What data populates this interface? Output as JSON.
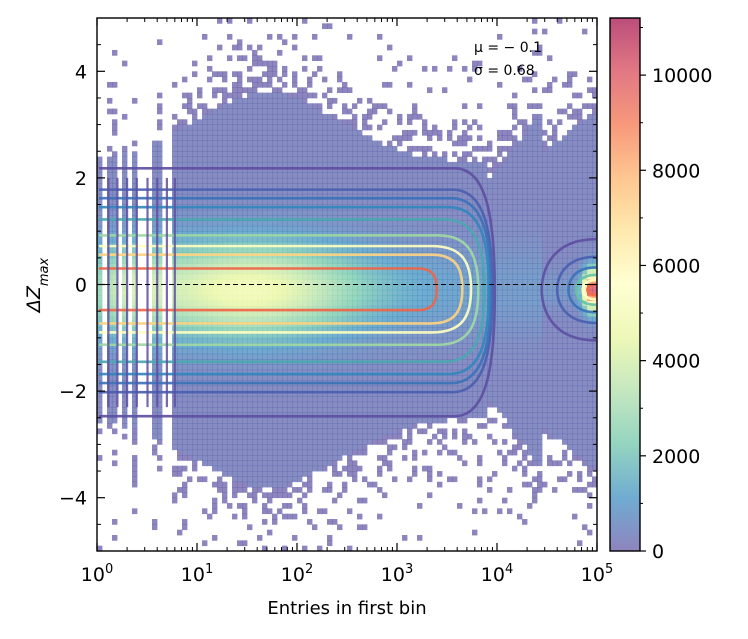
{
  "chart_data": {
    "type": "heatmap",
    "title": "",
    "xlabel": "Entries in first bin",
    "ylabel_main": "ΔZ",
    "ylabel_sub": "max",
    "xscale": "log",
    "xlim": [
      1,
      100000
    ],
    "ylim": [
      -5,
      5
    ],
    "x_ticks": [
      {
        "value": 1,
        "base": "10",
        "exp": "0"
      },
      {
        "value": 10,
        "base": "10",
        "exp": "1"
      },
      {
        "value": 100,
        "base": "10",
        "exp": "2"
      },
      {
        "value": 1000,
        "base": "10",
        "exp": "3"
      },
      {
        "value": 10000,
        "base": "10",
        "exp": "4"
      },
      {
        "value": 100000,
        "base": "10",
        "exp": "5"
      }
    ],
    "y_ticks": [
      {
        "value": 4,
        "label": "4"
      },
      {
        "value": 2,
        "label": "2"
      },
      {
        "value": 0,
        "label": "0"
      },
      {
        "value": -2,
        "label": "−2"
      },
      {
        "value": -4,
        "label": "−4"
      }
    ],
    "reference_line_y": 0,
    "colorbar": {
      "min": 0,
      "max": 11200,
      "ticks": [
        {
          "value": 0,
          "label": "0"
        },
        {
          "value": 2000,
          "label": "2000"
        },
        {
          "value": 4000,
          "label": "4000"
        },
        {
          "value": 6000,
          "label": "6000"
        },
        {
          "value": 8000,
          "label": "8000"
        },
        {
          "value": 10000,
          "label": "10000"
        }
      ],
      "colormap": "Spectral_r",
      "stops": [
        "#5e4fa2",
        "#3288bd",
        "#66c2a5",
        "#abdda4",
        "#e6f598",
        "#ffffbf",
        "#fee08b",
        "#fdae61",
        "#f46d43",
        "#d53e4f",
        "#9e0142"
      ],
      "alpha": 0.7
    },
    "stats": {
      "mu_label": "μ = − 0.1",
      "sigma_label": "σ = 0.68",
      "mu": -0.1,
      "sigma": 0.68
    },
    "contours": [
      {
        "level": 200,
        "upper": 2.18,
        "lower": -2.47,
        "x_turn": 9500,
        "color": "#5e4fa2"
      },
      {
        "level": 600,
        "upper": 1.78,
        "lower": -2.02,
        "x_turn": 9000,
        "color": "#4a5fb0"
      },
      {
        "level": 1000,
        "upper": 1.62,
        "lower": -1.85,
        "x_turn": 8700,
        "color": "#3b73b9"
      },
      {
        "level": 1500,
        "upper": 1.45,
        "lower": -1.68,
        "x_turn": 8300,
        "color": "#3288bd"
      },
      {
        "level": 2500,
        "upper": 1.22,
        "lower": -1.45,
        "x_turn": 7500,
        "color": "#4aa8b0"
      },
      {
        "level": 3500,
        "upper": 0.92,
        "lower": -1.13,
        "x_turn": 6500,
        "color": "#9fd8a4"
      },
      {
        "level": 5000,
        "upper": 0.72,
        "lower": -0.9,
        "x_turn": 5500,
        "color": "#ffffbf"
      },
      {
        "level": 6500,
        "upper": 0.56,
        "lower": -0.73,
        "x_turn": 4500,
        "color": "#fdd282"
      },
      {
        "level": 8000,
        "upper": 0.3,
        "lower": -0.48,
        "x_turn": 2500,
        "color": "#ef6548"
      }
    ],
    "right_cluster": {
      "x_center": 70000,
      "y_center": -0.1,
      "rings": [
        {
          "x_left": 28000,
          "half_height": 0.95,
          "color": "#5e4fa2"
        },
        {
          "x_left": 40000,
          "half_height": 0.62,
          "color": "#4a5fb0"
        },
        {
          "x_left": 52000,
          "half_height": 0.42,
          "color": "#3b73b9"
        },
        {
          "x_left": 62000,
          "half_height": 0.28,
          "color": "#66c2a5"
        },
        {
          "x_left": 72000,
          "half_height": 0.18,
          "color": "#ffffbf"
        },
        {
          "x_left": 80000,
          "half_height": 0.1,
          "color": "#f46d43"
        }
      ]
    }
  }
}
